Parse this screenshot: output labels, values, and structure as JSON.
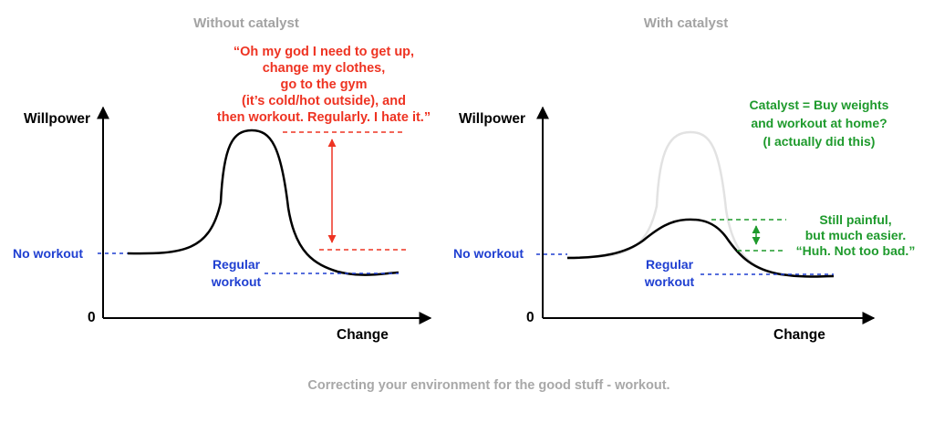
{
  "colors": {
    "axis": "#000000",
    "curve": "#000000",
    "ghost_curve": "#e2e2e2",
    "blue": "#1f3fd1",
    "red": "#ee3322",
    "green": "#1e9a2c",
    "title_gray": "#a3a3a3"
  },
  "left": {
    "title": "Without catalyst",
    "y_axis_label": "Willpower",
    "x_axis_label": "Change",
    "origin_label": "0",
    "no_workout_label": "No workout",
    "regular_label_line1": "Regular",
    "regular_label_line2": "workout",
    "quote_lines": [
      "“Oh my god I need to get up,",
      "change my clothes,",
      "go to the gym",
      "(it’s cold/hot outside), and",
      "then workout. Regularly. I hate it.”"
    ]
  },
  "right": {
    "title": "With catalyst",
    "y_axis_label": "Willpower",
    "x_axis_label": "Change",
    "origin_label": "0",
    "no_workout_label": "No workout",
    "regular_label_line1": "Regular",
    "regular_label_line2": "workout",
    "catalyst_lines": [
      "Catalyst = Buy weights",
      "and workout at home?",
      "(I actually did this)"
    ],
    "still_lines": [
      "Still painful,",
      "but much easier.",
      "“Huh. Not too bad.”"
    ]
  },
  "caption": "Correcting your environment for the good stuff - workout."
}
